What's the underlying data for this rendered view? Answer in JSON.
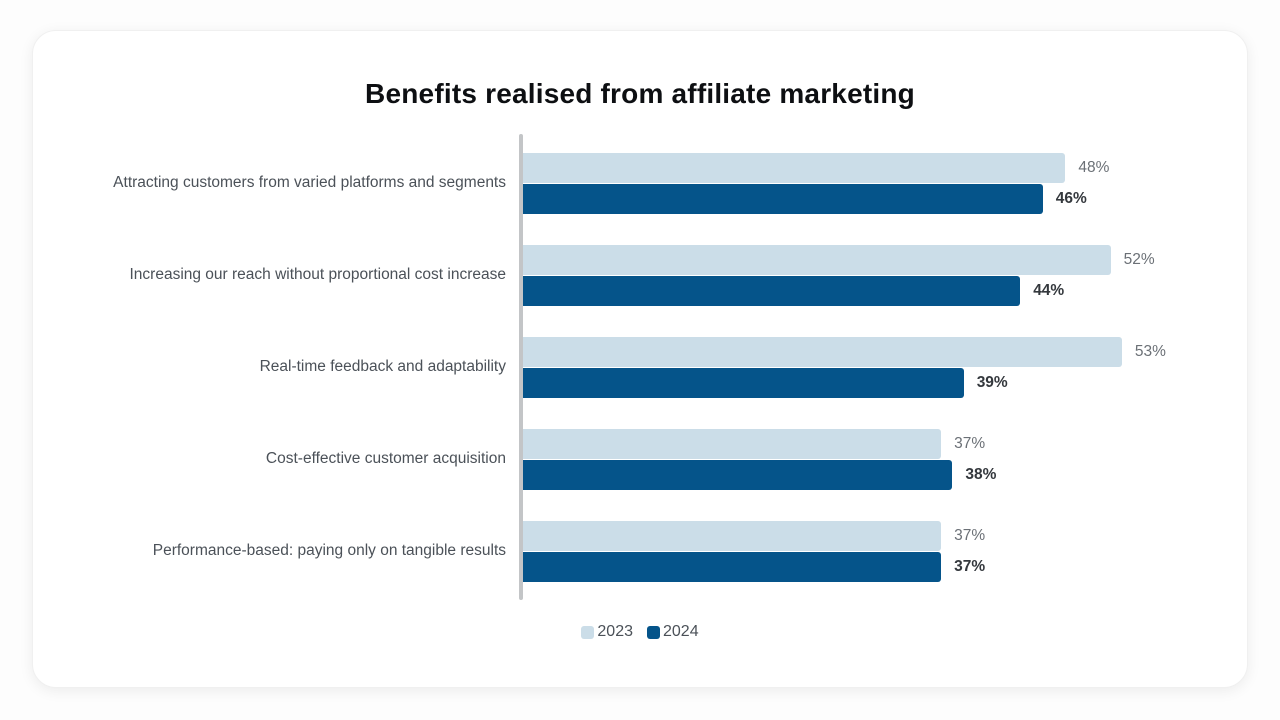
{
  "chart_data": {
    "type": "bar",
    "orientation": "horizontal",
    "title": "Benefits realised from affiliate marketing",
    "categories": [
      "Attracting customers from varied platforms and segments",
      "Increasing our reach without proportional cost increase",
      "Real-time feedback and adaptability",
      "Cost-effective customer acquisition",
      "Performance-based: paying only on tangible results"
    ],
    "series": [
      {
        "name": "2023",
        "color": "#cbdde8",
        "values": [
          48,
          52,
          53,
          37,
          37
        ]
      },
      {
        "name": "2024",
        "color": "#05548a",
        "values": [
          46,
          44,
          39,
          38,
          37
        ]
      }
    ],
    "value_suffix": "%",
    "xlim": [
      0,
      55
    ],
    "grid": false,
    "legend_position": "bottom",
    "axis_line_color": "#c3c5c7"
  }
}
